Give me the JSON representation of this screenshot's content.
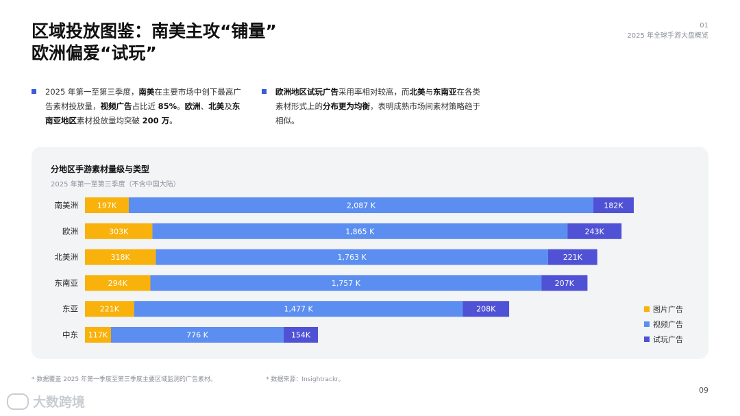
{
  "header": {
    "title_line1": "区域投放图鉴：南美主攻“铺量”",
    "title_line2": "欧洲偏爱“试玩”",
    "page_code": "01",
    "report_name": "2025 年全球手游大盘概览"
  },
  "bullets": {
    "left": {
      "t1": "2025 年第一至第三季度，",
      "b1": "南美",
      "t2": "在主要市场中创下最高广告素材投放量，",
      "b2": "视频广告",
      "t3": "占比近 ",
      "b3": "85%",
      "t4": "。",
      "b4": "欧洲",
      "t5": "、",
      "b5": "北美",
      "t6": "及",
      "b6": "东南亚地区",
      "t7": "素材投放量均突破 ",
      "b7": "200 万",
      "t8": "。"
    },
    "right": {
      "b1": "欧洲地区试玩广告",
      "t1": "采用率相对较高，而",
      "b2": "北美",
      "t2": "与",
      "b3": "东南亚",
      "t3": "在各类素材形式上的",
      "b4": "分布更为均衡",
      "t4": "，表明成熟市场间素材策略趋于相似。"
    }
  },
  "colors": {
    "image_ad": "#f9b10b",
    "video_ad": "#5b8ef0",
    "playable_ad": "#5052d6"
  },
  "chart_data": {
    "type": "bar",
    "orientation": "horizontal",
    "stacked": true,
    "title": "分地区手游素材量级与类型",
    "subtitle": "2025 年第一至第三季度（不含中国大陆）",
    "categories": [
      "南美洲",
      "欧洲",
      "北美洲",
      "东南亚",
      "东亚",
      "中东"
    ],
    "series": [
      {
        "name": "图片广告",
        "values": [
          197,
          303,
          318,
          294,
          221,
          117
        ],
        "labels": [
          "197K",
          "303K",
          "318K",
          "294K",
          "221K",
          "117K"
        ]
      },
      {
        "name": "视频广告",
        "values": [
          2087,
          1865,
          1763,
          1757,
          1477,
          776
        ],
        "labels": [
          "2,087 K",
          "1,865 K",
          "1,763 K",
          "1,757 K",
          "1,477 K",
          "776 K"
        ]
      },
      {
        "name": "试玩广告",
        "values": [
          182,
          243,
          221,
          207,
          208,
          154
        ],
        "labels": [
          "182K",
          "243K",
          "221K",
          "207K",
          "208K",
          "154K"
        ]
      }
    ],
    "unit": "K",
    "legend_position": "bottom-right"
  },
  "footnotes": {
    "scope": "* 数据覆盖 2025 年第一季度至第三季度主要区域监测的广告素材。",
    "source": "* 数据来源：Insightrackr。"
  },
  "page_number": "09",
  "watermark": "大数跨境"
}
